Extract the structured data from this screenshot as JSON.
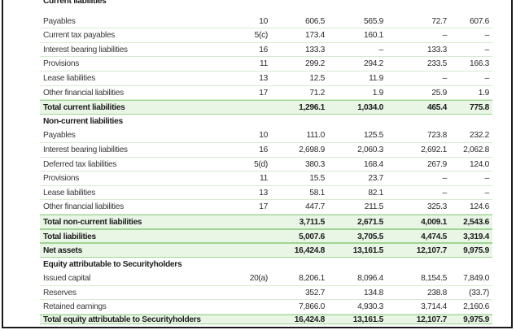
{
  "rows": [
    {
      "label": "Current liabilities",
      "note": "",
      "c1": "",
      "c2": "",
      "c3": "",
      "c4": "",
      "kind": "head"
    },
    {
      "label": "Payables",
      "note": "10",
      "c1": "606.5",
      "c2": "565.9",
      "c3": "72.7",
      "c4": "607.6",
      "kind": "plain"
    },
    {
      "label": "Current tax payables",
      "note": "5(c)",
      "c1": "173.4",
      "c2": "160.1",
      "c3": "–",
      "c4": "–",
      "kind": "plain"
    },
    {
      "label": "Interest bearing liabilities",
      "note": "16",
      "c1": "133.3",
      "c2": "–",
      "c3": "133.3",
      "c4": "–",
      "kind": "plain"
    },
    {
      "label": "Provisions",
      "note": "11",
      "c1": "299.2",
      "c2": "294.2",
      "c3": "233.5",
      "c4": "166.3",
      "kind": "plain"
    },
    {
      "label": "Lease liabilities",
      "note": "13",
      "c1": "12.5",
      "c2": "11.9",
      "c3": "–",
      "c4": "–",
      "kind": "plain"
    },
    {
      "label": "Other financial liabilities",
      "note": "17",
      "c1": "71.2",
      "c2": "1.9",
      "c3": "25.9",
      "c4": "1.9",
      "kind": "plain"
    },
    {
      "label": "Total current liabilities",
      "note": "",
      "c1": "1,296.1",
      "c2": "1,034.0",
      "c3": "465.4",
      "c4": "775.8",
      "kind": "total"
    },
    {
      "label": "Non-current liabilities",
      "note": "",
      "c1": "",
      "c2": "",
      "c3": "",
      "c4": "",
      "kind": "head"
    },
    {
      "label": "Payables",
      "note": "10",
      "c1": "111.0",
      "c2": "125.5",
      "c3": "723.8",
      "c4": "232.2",
      "kind": "plain"
    },
    {
      "label": "Interest bearing liabilities",
      "note": "16",
      "c1": "2,698.9",
      "c2": "2,060.3",
      "c3": "2,692.1",
      "c4": "2,062.8",
      "kind": "plain"
    },
    {
      "label": "Deferred tax liabilities",
      "note": "5(d)",
      "c1": "380.3",
      "c2": "168.4",
      "c3": "267.9",
      "c4": "124.0",
      "kind": "plain"
    },
    {
      "label": "Provisions",
      "note": "11",
      "c1": "15.5",
      "c2": "23.7",
      "c3": "–",
      "c4": "–",
      "kind": "plain"
    },
    {
      "label": "Lease liabilities",
      "note": "13",
      "c1": "58.1",
      "c2": "82.1",
      "c3": "–",
      "c4": "–",
      "kind": "plain"
    },
    {
      "label": "Other financial liabilities",
      "note": "17",
      "c1": "447.7",
      "c2": "211.5",
      "c3": "325.3",
      "c4": "124.6",
      "kind": "plain"
    },
    {
      "label": "Total non-current liabilities",
      "note": "",
      "c1": "3,711.5",
      "c2": "2,671.5",
      "c3": "4,009.1",
      "c4": "2,543.6",
      "kind": "total"
    },
    {
      "label": "Total liabilities",
      "note": "",
      "c1": "5,007.6",
      "c2": "3,705.5",
      "c3": "4,474.5",
      "c4": "3,319.4",
      "kind": "total"
    },
    {
      "label": "Net assets",
      "note": "",
      "c1": "16,424.8",
      "c2": "13,161.5",
      "c3": "12,107.7",
      "c4": "9,975.9",
      "kind": "total"
    },
    {
      "label": "Equity attributable to Securityholders",
      "note": "",
      "c1": "",
      "c2": "",
      "c3": "",
      "c4": "",
      "kind": "head"
    },
    {
      "label": "Issued capital",
      "note": "20(a)",
      "c1": "8,206.1",
      "c2": "8,096.4",
      "c3": "8,154.5",
      "c4": "7,849.0",
      "kind": "plain"
    },
    {
      "label": "Reserves",
      "note": "",
      "c1": "352.7",
      "c2": "134.8",
      "c3": "238.8",
      "c4": "(33.7)",
      "kind": "plain"
    },
    {
      "label": "Retained earnings",
      "note": "",
      "c1": "7,866.0",
      "c2": "4,930.3",
      "c3": "3,714.4",
      "c4": "2,160.6",
      "kind": "plain"
    },
    {
      "label": "Total equity attributable to Securityholders",
      "note": "",
      "c1": "16,424.8",
      "c2": "13,161.5",
      "c3": "12,107.7",
      "c4": "9,975.9",
      "kind": "total"
    }
  ]
}
